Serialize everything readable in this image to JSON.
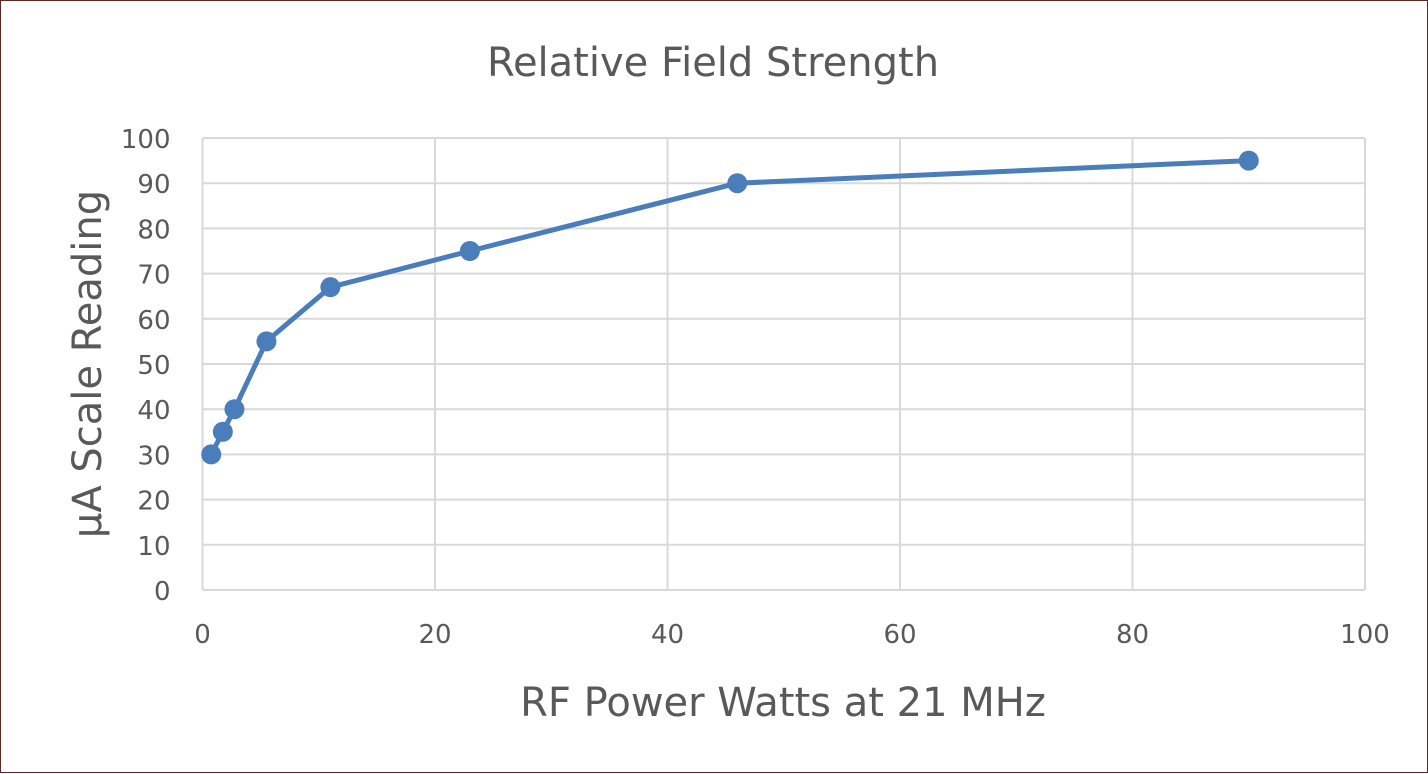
{
  "chart_data": {
    "type": "line",
    "title": "Relative Field Strength",
    "xlabel": "RF Power Watts at 21 MHz",
    "ylabel": "µA Scale Reading",
    "xlim": [
      0,
      100
    ],
    "ylim": [
      0,
      100
    ],
    "xticks": [
      0,
      20,
      40,
      60,
      80,
      100
    ],
    "yticks": [
      0,
      10,
      20,
      30,
      40,
      50,
      60,
      70,
      80,
      90,
      100
    ],
    "grid": true,
    "legend": "none",
    "series": [
      {
        "color": "#4a7ebb",
        "x": [
          0.75,
          1.75,
          2.75,
          5.5,
          11,
          23,
          46,
          90
        ],
        "y": [
          30,
          35,
          40,
          55,
          67,
          75,
          90,
          95
        ]
      }
    ]
  }
}
